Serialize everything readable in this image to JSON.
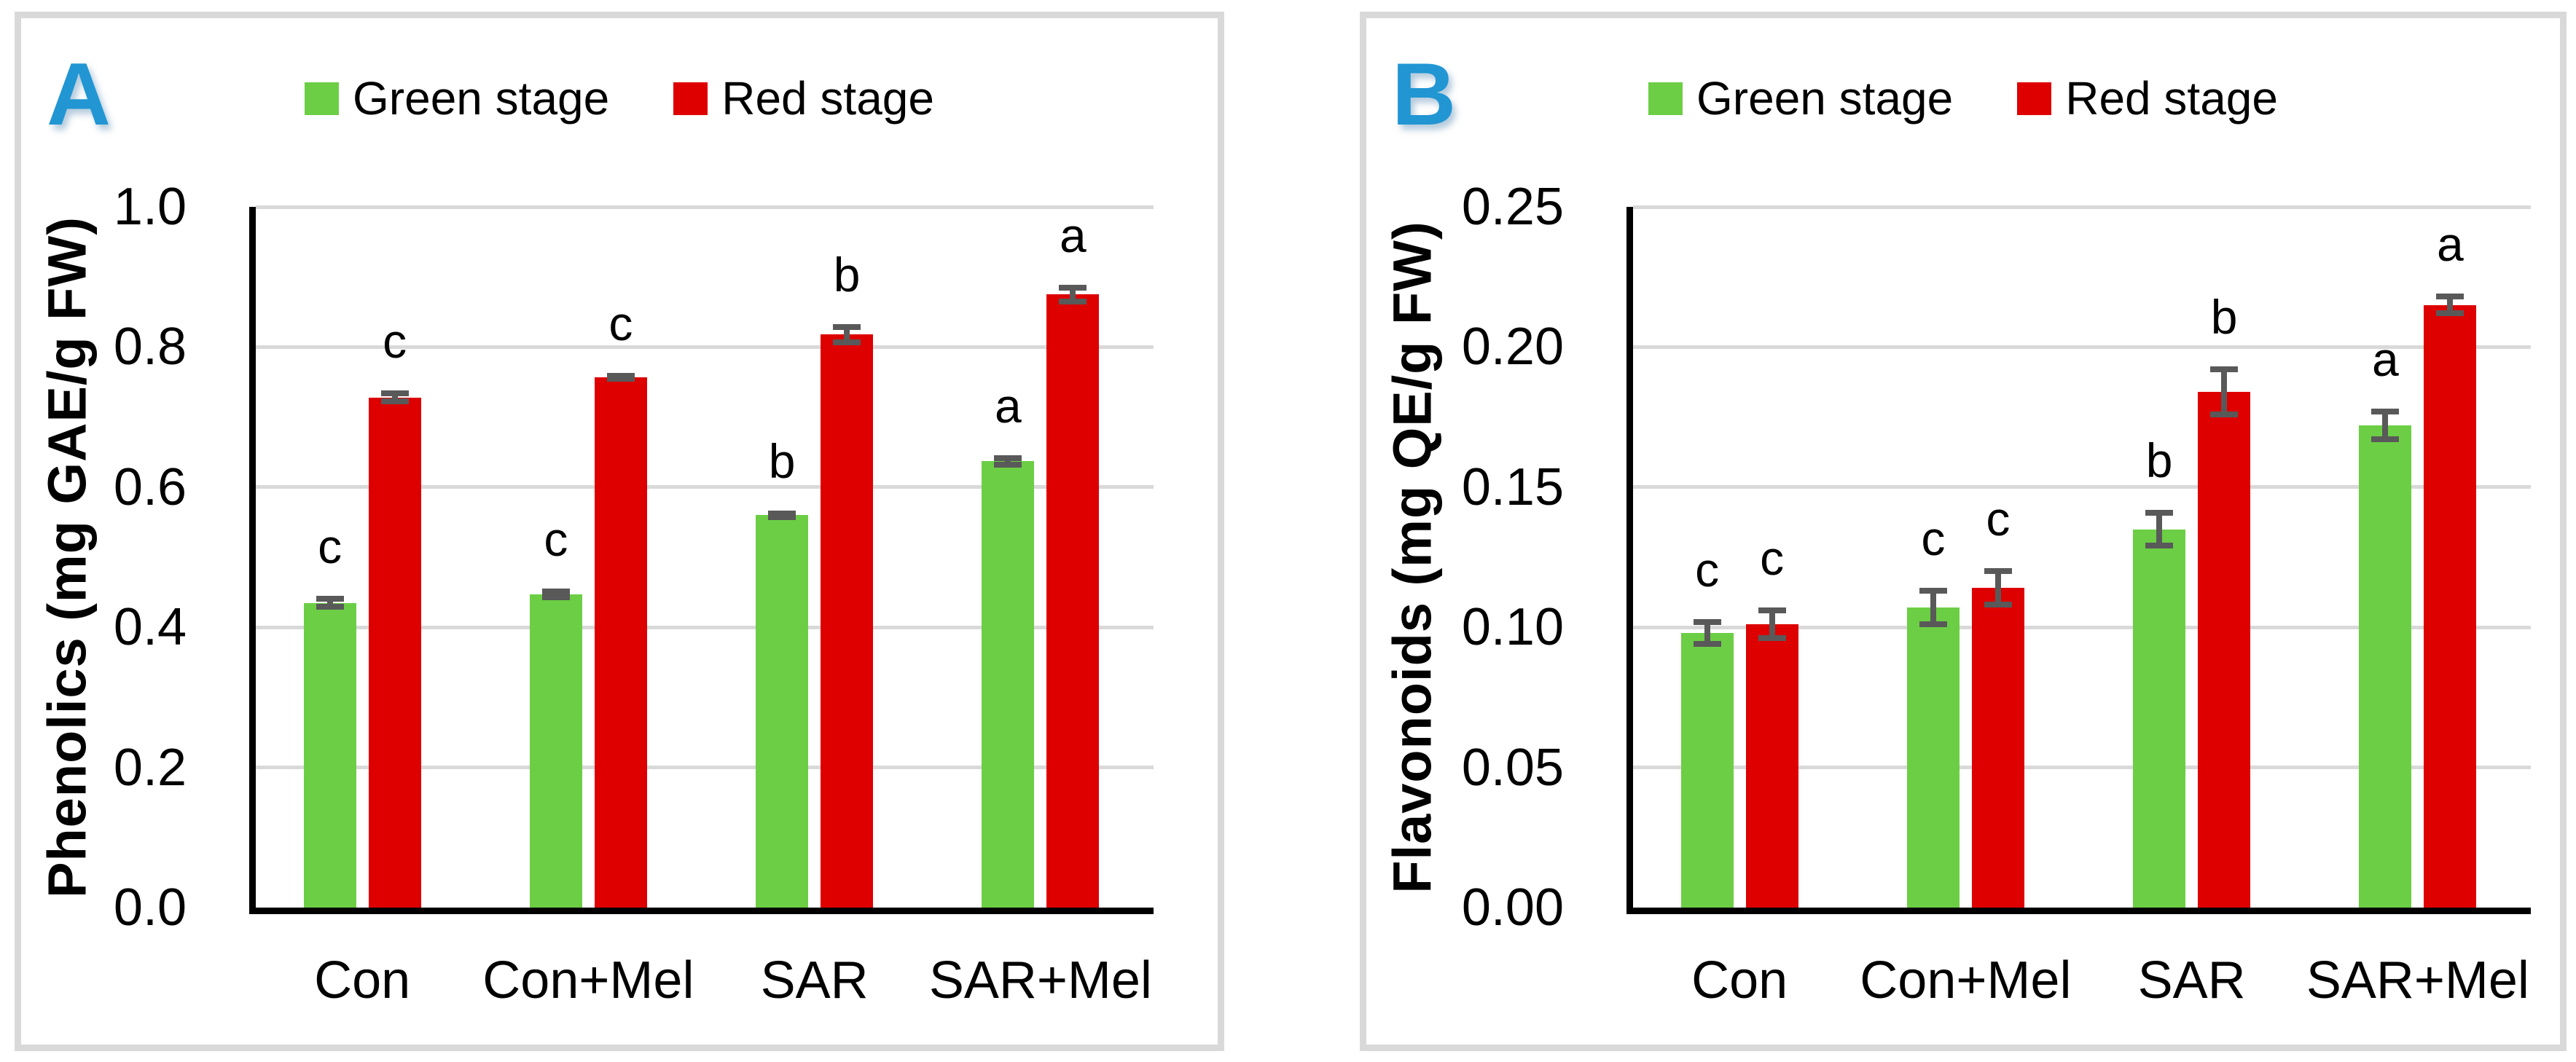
{
  "colors": {
    "bar_green": "#6CCE45",
    "bar_red": "#DE0000",
    "panel_label_blue": "#2196D3",
    "error_bar": "#595959",
    "gridline": "#D9D9D9",
    "frame_border": "#D9D9D9"
  },
  "chart_data": [
    {
      "type": "bar",
      "panel_label": "A",
      "ylabel": "Phenolics (mg GAE/g FW)",
      "ylim": [
        0,
        1.0
      ],
      "yticks": [
        "0.0",
        "0.2",
        "0.4",
        "0.6",
        "0.8",
        "1.0"
      ],
      "categories": [
        "Con",
        "Con+Mel",
        "SAR",
        "SAR+Mel"
      ],
      "grid": true,
      "legend_position": "top",
      "series": [
        {
          "name": "Green stage",
          "color": "#6CCE45",
          "values": [
            0.435,
            0.447,
            0.56,
            0.637
          ],
          "errors": [
            0.01,
            0.008,
            0.007,
            0.009
          ],
          "letters": [
            "c",
            "c",
            "b",
            "a"
          ]
        },
        {
          "name": "Red stage",
          "color": "#DE0000",
          "values": [
            0.728,
            0.757,
            0.818,
            0.875
          ],
          "errors": [
            0.01,
            0.006,
            0.015,
            0.014
          ],
          "letters": [
            "c",
            "c",
            "b",
            "a"
          ]
        }
      ]
    },
    {
      "type": "bar",
      "panel_label": "B",
      "ylabel": "Flavonoids (mg QE/g FW)",
      "ylim": [
        0,
        0.25
      ],
      "yticks": [
        "0.00",
        "0.05",
        "0.10",
        "0.15",
        "0.20",
        "0.25"
      ],
      "categories": [
        "Con",
        "Con+Mel",
        "SAR",
        "SAR+Mel"
      ],
      "grid": true,
      "legend_position": "top",
      "series": [
        {
          "name": "Green stage",
          "color": "#6CCE45",
          "values": [
            0.098,
            0.107,
            0.135,
            0.172
          ],
          "errors": [
            0.005,
            0.007,
            0.007,
            0.006
          ],
          "letters": [
            "c",
            "c",
            "b",
            "a"
          ]
        },
        {
          "name": "Red stage",
          "color": "#DE0000",
          "values": [
            0.101,
            0.114,
            0.184,
            0.215
          ],
          "errors": [
            0.006,
            0.007,
            0.009,
            0.004
          ],
          "letters": [
            "c",
            "c",
            "b",
            "a"
          ]
        }
      ]
    }
  ]
}
